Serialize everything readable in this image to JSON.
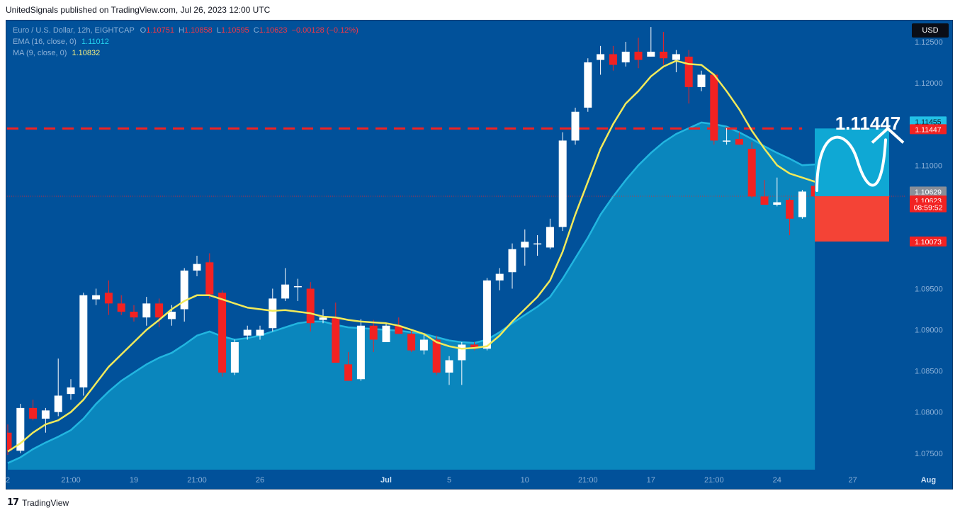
{
  "header": {
    "caption": "UnitedSignals published on TradingView.com, Jul 26, 2023 12:00 UTC"
  },
  "legend": {
    "symbol": "Euro / U.S. Dollar, 12h, EIGHTCAP",
    "o_label": "O",
    "o_value": "1.10751",
    "h_label": "H",
    "h_value": "1.10858",
    "l_label": "L",
    "l_value": "1.10595",
    "c_label": "C",
    "c_value": "1.10623",
    "change": "−0.00128 (−0.12%)",
    "ema_label": "EMA (16, close, 0)",
    "ema_value": "1.11012",
    "ma_label": "MA (9, close, 0)",
    "ma_value": "1.10832"
  },
  "currency_button": "USD",
  "target": {
    "big_label": "1.11447"
  },
  "price_badges": [
    {
      "text": "1.11455",
      "bg": "#22c1e6",
      "fg": "#0a1a2a",
      "price": 1.11455
    },
    {
      "text": "1.11447",
      "bg": "#f22222",
      "fg": "#ffffff",
      "price": 1.11447
    },
    {
      "text": "1.10629",
      "bg": "#8a8f98",
      "fg": "#ffffff",
      "price": 1.10629
    },
    {
      "text": "1.10623",
      "bg": "#f22222",
      "fg": "#ffffff",
      "price": 1.10623
    },
    {
      "text": "08:59:52",
      "bg": "#f22222",
      "fg": "#ffffff",
      "price": 1.10523
    },
    {
      "text": "1.10073",
      "bg": "#f22222",
      "fg": "#ffffff",
      "price": 1.10073
    }
  ],
  "colors": {
    "background": "#01519a",
    "up_candle": "#ffffff",
    "down_candle": "#f22222",
    "ema_area": "#0a86bd",
    "ma_line": "#f2ea5a",
    "level_line": "#f22222",
    "target_up": "#0fa8d4",
    "target_down": "#f44336"
  },
  "footer": {
    "brand": "TradingView"
  },
  "chart_data": {
    "type": "candlestick",
    "symbol": "EURUSD",
    "timeframe": "12h",
    "ylim": [
      1.073,
      1.1275
    ],
    "yticks": [
      "1.12500",
      "1.12000",
      "1.11000",
      "1.10500",
      "1.09500",
      "1.09000",
      "1.08500",
      "1.08000",
      "1.07500"
    ],
    "xticks": [
      {
        "label": "2",
        "index": 0
      },
      {
        "label": "21:00",
        "index": 5
      },
      {
        "label": "19",
        "index": 10
      },
      {
        "label": "21:00",
        "index": 15
      },
      {
        "label": "26",
        "index": 20
      },
      {
        "label": "Jul",
        "index": 30
      },
      {
        "label": "5",
        "index": 35
      },
      {
        "label": "10",
        "index": 41
      },
      {
        "label": "21:00",
        "index": 46
      },
      {
        "label": "17",
        "index": 51
      },
      {
        "label": "21:00",
        "index": 56
      },
      {
        "label": "24",
        "index": 61
      },
      {
        "label": "27",
        "index": 67
      },
      {
        "label": "Aug",
        "index": 73
      }
    ],
    "horizontal_level": 1.11447,
    "current_price": 1.10623,
    "target_box": {
      "top": 1.11447,
      "entry": 1.10623,
      "bottom": 1.10073
    },
    "candles": [
      {
        "o": 1.0775,
        "h": 1.0785,
        "l": 1.0748,
        "c": 1.0753
      },
      {
        "o": 1.0753,
        "h": 1.081,
        "l": 1.075,
        "c": 1.0805
      },
      {
        "o": 1.0805,
        "h": 1.0815,
        "l": 1.079,
        "c": 1.0792
      },
      {
        "o": 1.0792,
        "h": 1.0805,
        "l": 1.0775,
        "c": 1.0802
      },
      {
        "o": 1.08,
        "h": 1.0865,
        "l": 1.0795,
        "c": 1.082
      },
      {
        "o": 1.0822,
        "h": 1.084,
        "l": 1.0815,
        "c": 1.083
      },
      {
        "o": 1.083,
        "h": 1.0945,
        "l": 1.082,
        "c": 1.0942
      },
      {
        "o": 1.0937,
        "h": 1.095,
        "l": 1.093,
        "c": 1.0942
      },
      {
        "o": 1.0945,
        "h": 1.096,
        "l": 1.0918,
        "c": 1.0932
      },
      {
        "o": 1.0932,
        "h": 1.0942,
        "l": 1.0918,
        "c": 1.0922
      },
      {
        "o": 1.0922,
        "h": 1.093,
        "l": 1.091,
        "c": 1.0915
      },
      {
        "o": 1.0915,
        "h": 1.094,
        "l": 1.0905,
        "c": 1.0932
      },
      {
        "o": 1.0932,
        "h": 1.0938,
        "l": 1.0903,
        "c": 1.0915
      },
      {
        "o": 1.0913,
        "h": 1.093,
        "l": 1.0905,
        "c": 1.0922
      },
      {
        "o": 1.0925,
        "h": 1.0975,
        "l": 1.091,
        "c": 1.0972
      },
      {
        "o": 1.0972,
        "h": 1.099,
        "l": 1.0965,
        "c": 1.098
      },
      {
        "o": 1.0982,
        "h": 1.0993,
        "l": 1.0938,
        "c": 1.0943
      },
      {
        "o": 1.0945,
        "h": 1.0948,
        "l": 1.0843,
        "c": 1.0848
      },
      {
        "o": 1.0848,
        "h": 1.0888,
        "l": 1.0845,
        "c": 1.0885
      },
      {
        "o": 1.0893,
        "h": 1.0905,
        "l": 1.0888,
        "c": 1.09
      },
      {
        "o": 1.0893,
        "h": 1.0905,
        "l": 1.0888,
        "c": 1.09
      },
      {
        "o": 1.0902,
        "h": 1.095,
        "l": 1.0898,
        "c": 1.0938
      },
      {
        "o": 1.0938,
        "h": 1.0975,
        "l": 1.0935,
        "c": 1.0955
      },
      {
        "o": 1.0953,
        "h": 1.0962,
        "l": 1.0935,
        "c": 1.0953
      },
      {
        "o": 1.095,
        "h": 1.0958,
        "l": 1.0898,
        "c": 1.0908
      },
      {
        "o": 1.0912,
        "h": 1.0925,
        "l": 1.0908,
        "c": 1.0915
      },
      {
        "o": 1.0915,
        "h": 1.0933,
        "l": 1.086,
        "c": 1.086
      },
      {
        "o": 1.0858,
        "h": 1.0873,
        "l": 1.0838,
        "c": 1.0838
      },
      {
        "o": 1.084,
        "h": 1.0913,
        "l": 1.0838,
        "c": 1.0905
      },
      {
        "o": 1.0905,
        "h": 1.0912,
        "l": 1.0873,
        "c": 1.0888
      },
      {
        "o": 1.0885,
        "h": 1.0908,
        "l": 1.0885,
        "c": 1.0905
      },
      {
        "o": 1.0905,
        "h": 1.0915,
        "l": 1.0895,
        "c": 1.0895
      },
      {
        "o": 1.0895,
        "h": 1.09,
        "l": 1.0873,
        "c": 1.0875
      },
      {
        "o": 1.0875,
        "h": 1.0895,
        "l": 1.087,
        "c": 1.0888
      },
      {
        "o": 1.0888,
        "h": 1.0893,
        "l": 1.0845,
        "c": 1.0848
      },
      {
        "o": 1.0848,
        "h": 1.0868,
        "l": 1.0833,
        "c": 1.0863
      },
      {
        "o": 1.0863,
        "h": 1.0885,
        "l": 1.0833,
        "c": 1.0882
      },
      {
        "o": 1.0882,
        "h": 1.0885,
        "l": 1.0875,
        "c": 1.0877
      },
      {
        "o": 1.0877,
        "h": 1.0963,
        "l": 1.0875,
        "c": 1.096
      },
      {
        "o": 1.096,
        "h": 1.0975,
        "l": 1.0948,
        "c": 1.0968
      },
      {
        "o": 1.097,
        "h": 1.1005,
        "l": 1.095,
        "c": 1.0998
      },
      {
        "o": 1.1,
        "h": 1.1022,
        "l": 1.0978,
        "c": 1.1007
      },
      {
        "o": 1.1005,
        "h": 1.1015,
        "l": 1.099,
        "c": 1.1005
      },
      {
        "o": 1.1,
        "h": 1.1035,
        "l": 1.0998,
        "c": 1.1025
      },
      {
        "o": 1.1025,
        "h": 1.114,
        "l": 1.102,
        "c": 1.113
      },
      {
        "o": 1.113,
        "h": 1.117,
        "l": 1.1125,
        "c": 1.1165
      },
      {
        "o": 1.117,
        "h": 1.123,
        "l": 1.1165,
        "c": 1.1225
      },
      {
        "o": 1.1228,
        "h": 1.1245,
        "l": 1.121,
        "c": 1.1235
      },
      {
        "o": 1.1235,
        "h": 1.1245,
        "l": 1.1215,
        "c": 1.1222
      },
      {
        "o": 1.1225,
        "h": 1.125,
        "l": 1.122,
        "c": 1.1238
      },
      {
        "o": 1.1238,
        "h": 1.1255,
        "l": 1.1218,
        "c": 1.1228
      },
      {
        "o": 1.1232,
        "h": 1.1268,
        "l": 1.1232,
        "c": 1.1238
      },
      {
        "o": 1.1238,
        "h": 1.1262,
        "l": 1.1222,
        "c": 1.123
      },
      {
        "o": 1.1228,
        "h": 1.124,
        "l": 1.1213,
        "c": 1.1235
      },
      {
        "o": 1.1232,
        "h": 1.124,
        "l": 1.1175,
        "c": 1.1195
      },
      {
        "o": 1.1195,
        "h": 1.1215,
        "l": 1.119,
        "c": 1.121
      },
      {
        "o": 1.121,
        "h": 1.1212,
        "l": 1.1125,
        "c": 1.113
      },
      {
        "o": 1.113,
        "h": 1.1145,
        "l": 1.1125,
        "c": 1.113
      },
      {
        "o": 1.1132,
        "h": 1.114,
        "l": 1.1125,
        "c": 1.1125
      },
      {
        "o": 1.112,
        "h": 1.1128,
        "l": 1.106,
        "c": 1.1062
      },
      {
        "o": 1.1062,
        "h": 1.1082,
        "l": 1.1052,
        "c": 1.1052
      },
      {
        "o": 1.1052,
        "h": 1.1085,
        "l": 1.105,
        "c": 1.1055
      },
      {
        "o": 1.1058,
        "h": 1.106,
        "l": 1.1015,
        "c": 1.1035
      },
      {
        "o": 1.1037,
        "h": 1.107,
        "l": 1.1035,
        "c": 1.1068
      },
      {
        "o": 1.1075,
        "h": 1.1086,
        "l": 1.106,
        "c": 1.1062
      }
    ],
    "ma_line": [
      1.0752,
      1.0762,
      1.0775,
      1.0785,
      1.079,
      1.08,
      1.0815,
      1.0835,
      1.0855,
      1.087,
      1.0885,
      1.09,
      1.0912,
      1.0925,
      1.0935,
      1.0942,
      1.0942,
      1.0937,
      1.0932,
      1.0927,
      1.0925,
      1.0923,
      1.0924,
      1.0922,
      1.092,
      1.0916,
      1.0915,
      1.0912,
      1.091,
      1.0909,
      1.0908,
      1.0905,
      1.09,
      1.0895,
      1.0885,
      1.088,
      1.0877,
      1.0878,
      1.088,
      1.0893,
      1.091,
      1.0925,
      1.094,
      1.096,
      1.0995,
      1.104,
      1.108,
      1.112,
      1.115,
      1.1175,
      1.119,
      1.1208,
      1.122,
      1.1227,
      1.1223,
      1.1222,
      1.121,
      1.119,
      1.1168,
      1.1142,
      1.112,
      1.11,
      1.109,
      1.1085,
      1.108
    ],
    "ema_line": [
      1.0738,
      1.0745,
      1.0755,
      1.0763,
      1.077,
      1.0778,
      1.0792,
      1.081,
      1.0825,
      1.0838,
      1.0848,
      1.0858,
      1.0866,
      1.0872,
      1.0882,
      1.0893,
      1.0898,
      1.0892,
      1.0888,
      1.089,
      1.0893,
      1.0898,
      1.0903,
      1.0908,
      1.091,
      1.091,
      1.0906,
      1.0903,
      1.0902,
      1.0901,
      1.09,
      1.0899,
      1.0897,
      1.0895,
      1.0891,
      1.0887,
      1.0885,
      1.0884,
      1.0888,
      1.0897,
      1.0908,
      1.0918,
      1.0928,
      1.094,
      1.0962,
      1.0987,
      1.1012,
      1.104,
      1.1062,
      1.1082,
      1.11,
      1.1115,
      1.1128,
      1.1138,
      1.1145,
      1.1152,
      1.115,
      1.1147,
      1.114,
      1.1132,
      1.1123,
      1.1115,
      1.1108,
      1.11,
      1.1101
    ]
  }
}
